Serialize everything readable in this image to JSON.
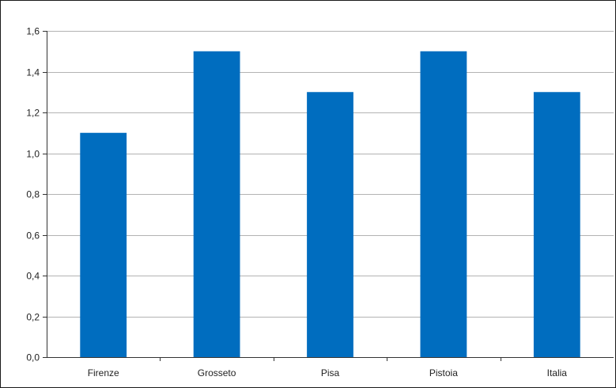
{
  "chart_data": {
    "type": "bar",
    "categories": [
      "Firenze",
      "Grosseto",
      "Pisa",
      "Pistoia",
      "Italia"
    ],
    "values": [
      1.1,
      1.5,
      1.3,
      1.5,
      1.3
    ],
    "ylim": [
      0,
      1.6
    ],
    "yticks": [
      "0,0",
      "0,2",
      "0,4",
      "0,6",
      "0,8",
      "1,0",
      "1,2",
      "1,4",
      "1,6"
    ],
    "grid": true,
    "legend": "none",
    "bar_color": "#006dbf",
    "grid_color": "#b3b3b3"
  }
}
